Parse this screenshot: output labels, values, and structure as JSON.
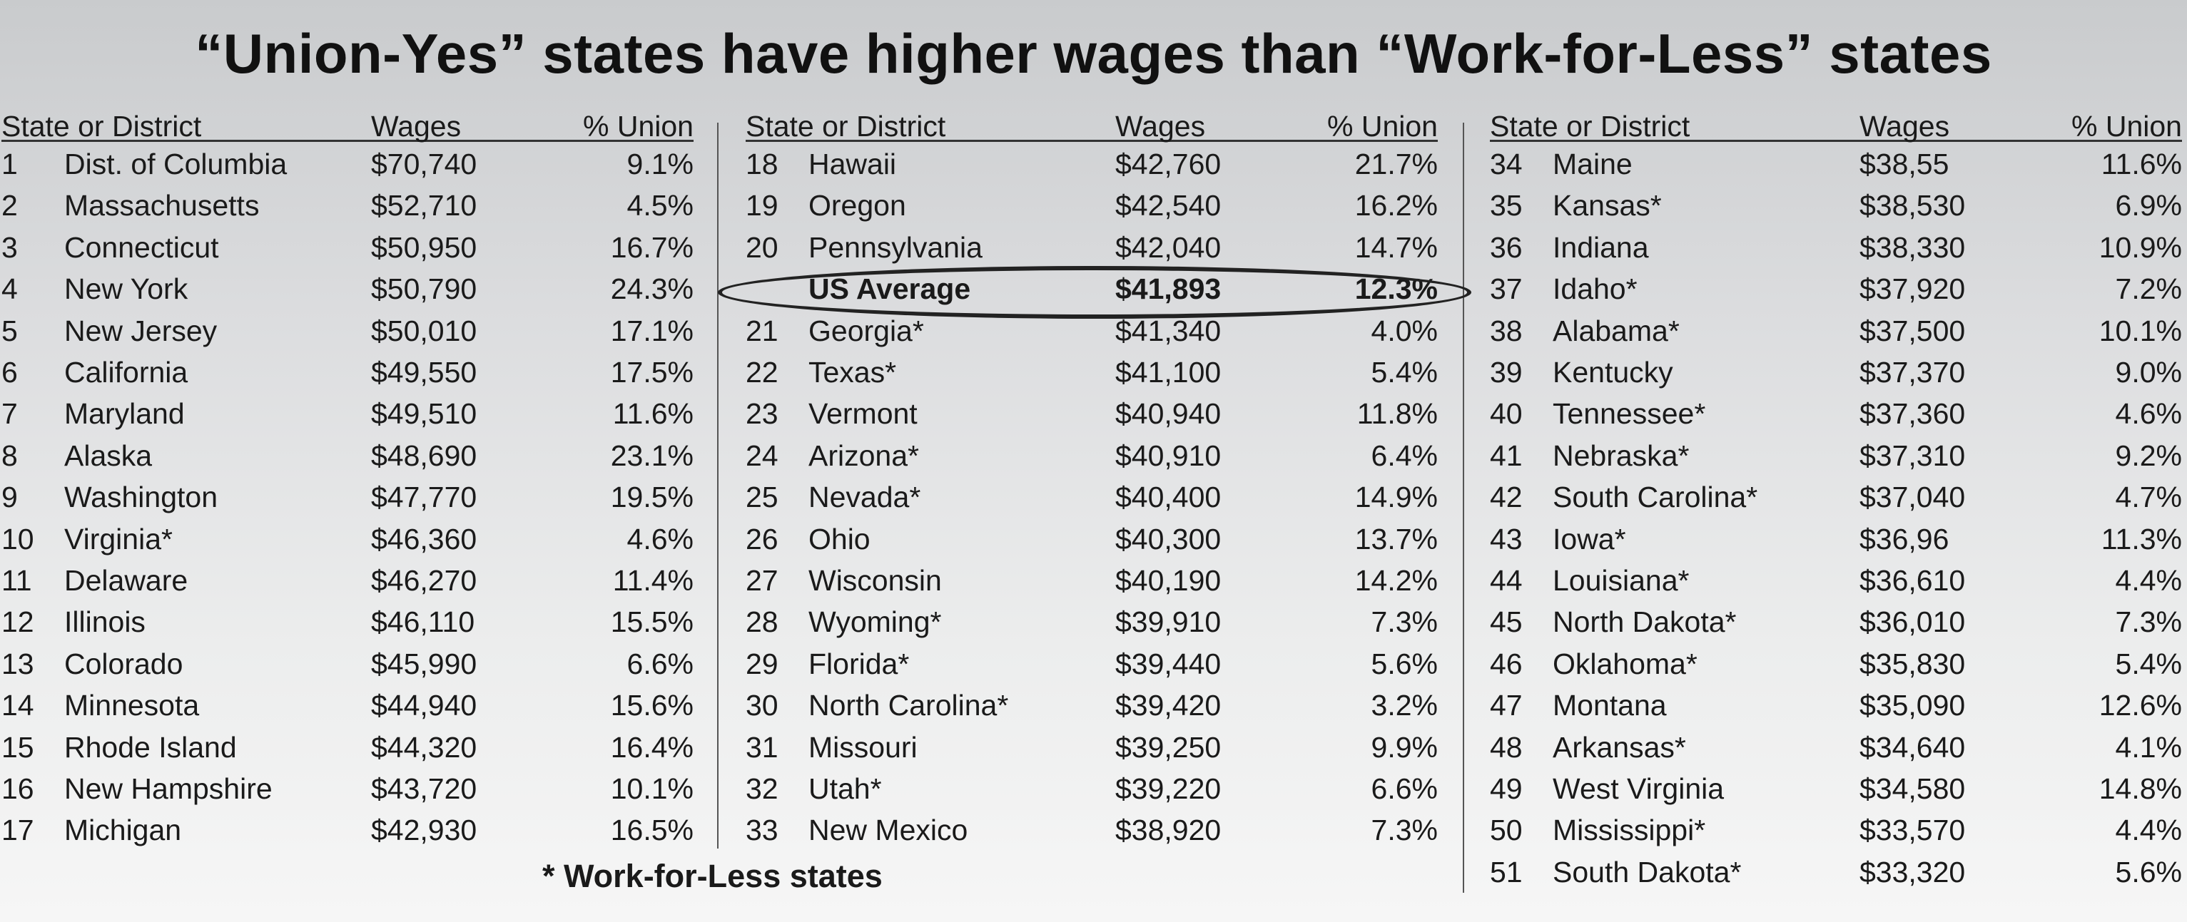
{
  "title": "“Union-Yes” states have higher wages than “Work-for-Less” states",
  "headers": {
    "state": "State or District",
    "wages": "Wages",
    "union": "% Union"
  },
  "footnote": "* Work-for-Less states",
  "chart_data": {
    "type": "table",
    "title": "“Union-Yes” states have higher wages than “Work-for-Less” states",
    "columns": [
      "State or District",
      "Wages",
      "% Union"
    ],
    "columns_groups": [
      [
        {
          "rank": "1",
          "state": "Dist. of Columbia",
          "wages": "$70,740",
          "union": "9.1%"
        },
        {
          "rank": "2",
          "state": "Massachusetts",
          "wages": "$52,710",
          "union": "4.5%"
        },
        {
          "rank": "3",
          "state": "Connecticut",
          "wages": "$50,950",
          "union": "16.7%"
        },
        {
          "rank": "4",
          "state": "New York",
          "wages": "$50,790",
          "union": "24.3%"
        },
        {
          "rank": "5",
          "state": "New Jersey",
          "wages": "$50,010",
          "union": "17.1%"
        },
        {
          "rank": "6",
          "state": "California",
          "wages": "$49,550",
          "union": "17.5%"
        },
        {
          "rank": "7",
          "state": "Maryland",
          "wages": "$49,510",
          "union": "11.6%"
        },
        {
          "rank": "8",
          "state": "Alaska",
          "wages": "$48,690",
          "union": "23.1%"
        },
        {
          "rank": "9",
          "state": "Washington",
          "wages": "$47,770",
          "union": "19.5%"
        },
        {
          "rank": "10",
          "state": "Virginia*",
          "wages": "$46,360",
          "union": "4.6%"
        },
        {
          "rank": "11",
          "state": "Delaware",
          "wages": "$46,270",
          "union": "11.4%"
        },
        {
          "rank": "12",
          "state": "Illinois",
          "wages": "$46,110",
          "union": "15.5%"
        },
        {
          "rank": "13",
          "state": "Colorado",
          "wages": "$45,990",
          "union": "6.6%"
        },
        {
          "rank": "14",
          "state": "Minnesota",
          "wages": "$44,940",
          "union": "15.6%"
        },
        {
          "rank": "15",
          "state": "Rhode Island",
          "wages": "$44,320",
          "union": "16.4%"
        },
        {
          "rank": "16",
          "state": "New Hampshire",
          "wages": "$43,720",
          "union": "10.1%"
        },
        {
          "rank": "17",
          "state": "Michigan",
          "wages": "$42,930",
          "union": "16.5%"
        }
      ],
      [
        {
          "rank": "18",
          "state": "Hawaii",
          "wages": "$42,760",
          "union": "21.7%"
        },
        {
          "rank": "19",
          "state": "Oregon",
          "wages": "$42,540",
          "union": "16.2%"
        },
        {
          "rank": "20",
          "state": "Pennsylvania",
          "wages": "$42,040",
          "union": "14.7%"
        },
        {
          "rank": "",
          "state": "US Average",
          "wages": "$41,893",
          "union": "12.3%",
          "highlight": true
        },
        {
          "rank": "21",
          "state": "Georgia*",
          "wages": "$41,340",
          "union": "4.0%"
        },
        {
          "rank": "22",
          "state": "Texas*",
          "wages": "$41,100",
          "union": "5.4%"
        },
        {
          "rank": "23",
          "state": "Vermont",
          "wages": "$40,940",
          "union": "11.8%"
        },
        {
          "rank": "24",
          "state": "Arizona*",
          "wages": "$40,910",
          "union": "6.4%"
        },
        {
          "rank": "25",
          "state": "Nevada*",
          "wages": "$40,400",
          "union": "14.9%"
        },
        {
          "rank": "26",
          "state": "Ohio",
          "wages": "$40,300",
          "union": "13.7%"
        },
        {
          "rank": "27",
          "state": "Wisconsin",
          "wages": "$40,190",
          "union": "14.2%"
        },
        {
          "rank": "28",
          "state": "Wyoming*",
          "wages": "$39,910",
          "union": "7.3%"
        },
        {
          "rank": "29",
          "state": "Florida*",
          "wages": "$39,440",
          "union": "5.6%"
        },
        {
          "rank": "30",
          "state": "North Carolina*",
          "wages": "$39,420",
          "union": "3.2%"
        },
        {
          "rank": "31",
          "state": "Missouri",
          "wages": "$39,250",
          "union": "9.9%"
        },
        {
          "rank": "32",
          "state": "Utah*",
          "wages": "$39,220",
          "union": "6.6%"
        },
        {
          "rank": "33",
          "state": "New Mexico",
          "wages": "$38,920",
          "union": "7.3%"
        }
      ],
      [
        {
          "rank": "34",
          "state": "Maine",
          "wages": "$38,55",
          "union": "11.6%"
        },
        {
          "rank": "35",
          "state": "Kansas*",
          "wages": "$38,530",
          "union": "6.9%"
        },
        {
          "rank": "36",
          "state": "Indiana",
          "wages": "$38,330",
          "union": "10.9%"
        },
        {
          "rank": "37",
          "state": "Idaho*",
          "wages": "$37,920",
          "union": "7.2%"
        },
        {
          "rank": "38",
          "state": "Alabama*",
          "wages": "$37,500",
          "union": "10.1%"
        },
        {
          "rank": "39",
          "state": "Kentucky",
          "wages": "$37,370",
          "union": "9.0%"
        },
        {
          "rank": "40",
          "state": "Tennessee*",
          "wages": "$37,360",
          "union": "4.6%"
        },
        {
          "rank": "41",
          "state": "Nebraska*",
          "wages": "$37,310",
          "union": "9.2%"
        },
        {
          "rank": "42",
          "state": "South Carolina*",
          "wages": "$37,040",
          "union": "4.7%"
        },
        {
          "rank": "43",
          "state": "Iowa*",
          "wages": "$36,96",
          "union": "11.3%"
        },
        {
          "rank": "44",
          "state": "Louisiana*",
          "wages": "$36,610",
          "union": "4.4%"
        },
        {
          "rank": "45",
          "state": "North Dakota*",
          "wages": "$36,010",
          "union": "7.3%"
        },
        {
          "rank": "46",
          "state": "Oklahoma*",
          "wages": "$35,830",
          "union": "5.4%"
        },
        {
          "rank": "47",
          "state": "Montana",
          "wages": "$35,090",
          "union": "12.6%"
        },
        {
          "rank": "48",
          "state": "Arkansas*",
          "wages": "$34,640",
          "union": "4.1%"
        },
        {
          "rank": "49",
          "state": "West Virginia",
          "wages": "$34,580",
          "union": "14.8%"
        },
        {
          "rank": "50",
          "state": "Mississippi*",
          "wages": "$33,570",
          "union": "4.4%"
        },
        {
          "rank": "51",
          "state": "South Dakota*",
          "wages": "$33,320",
          "union": "5.6%"
        }
      ]
    ]
  }
}
